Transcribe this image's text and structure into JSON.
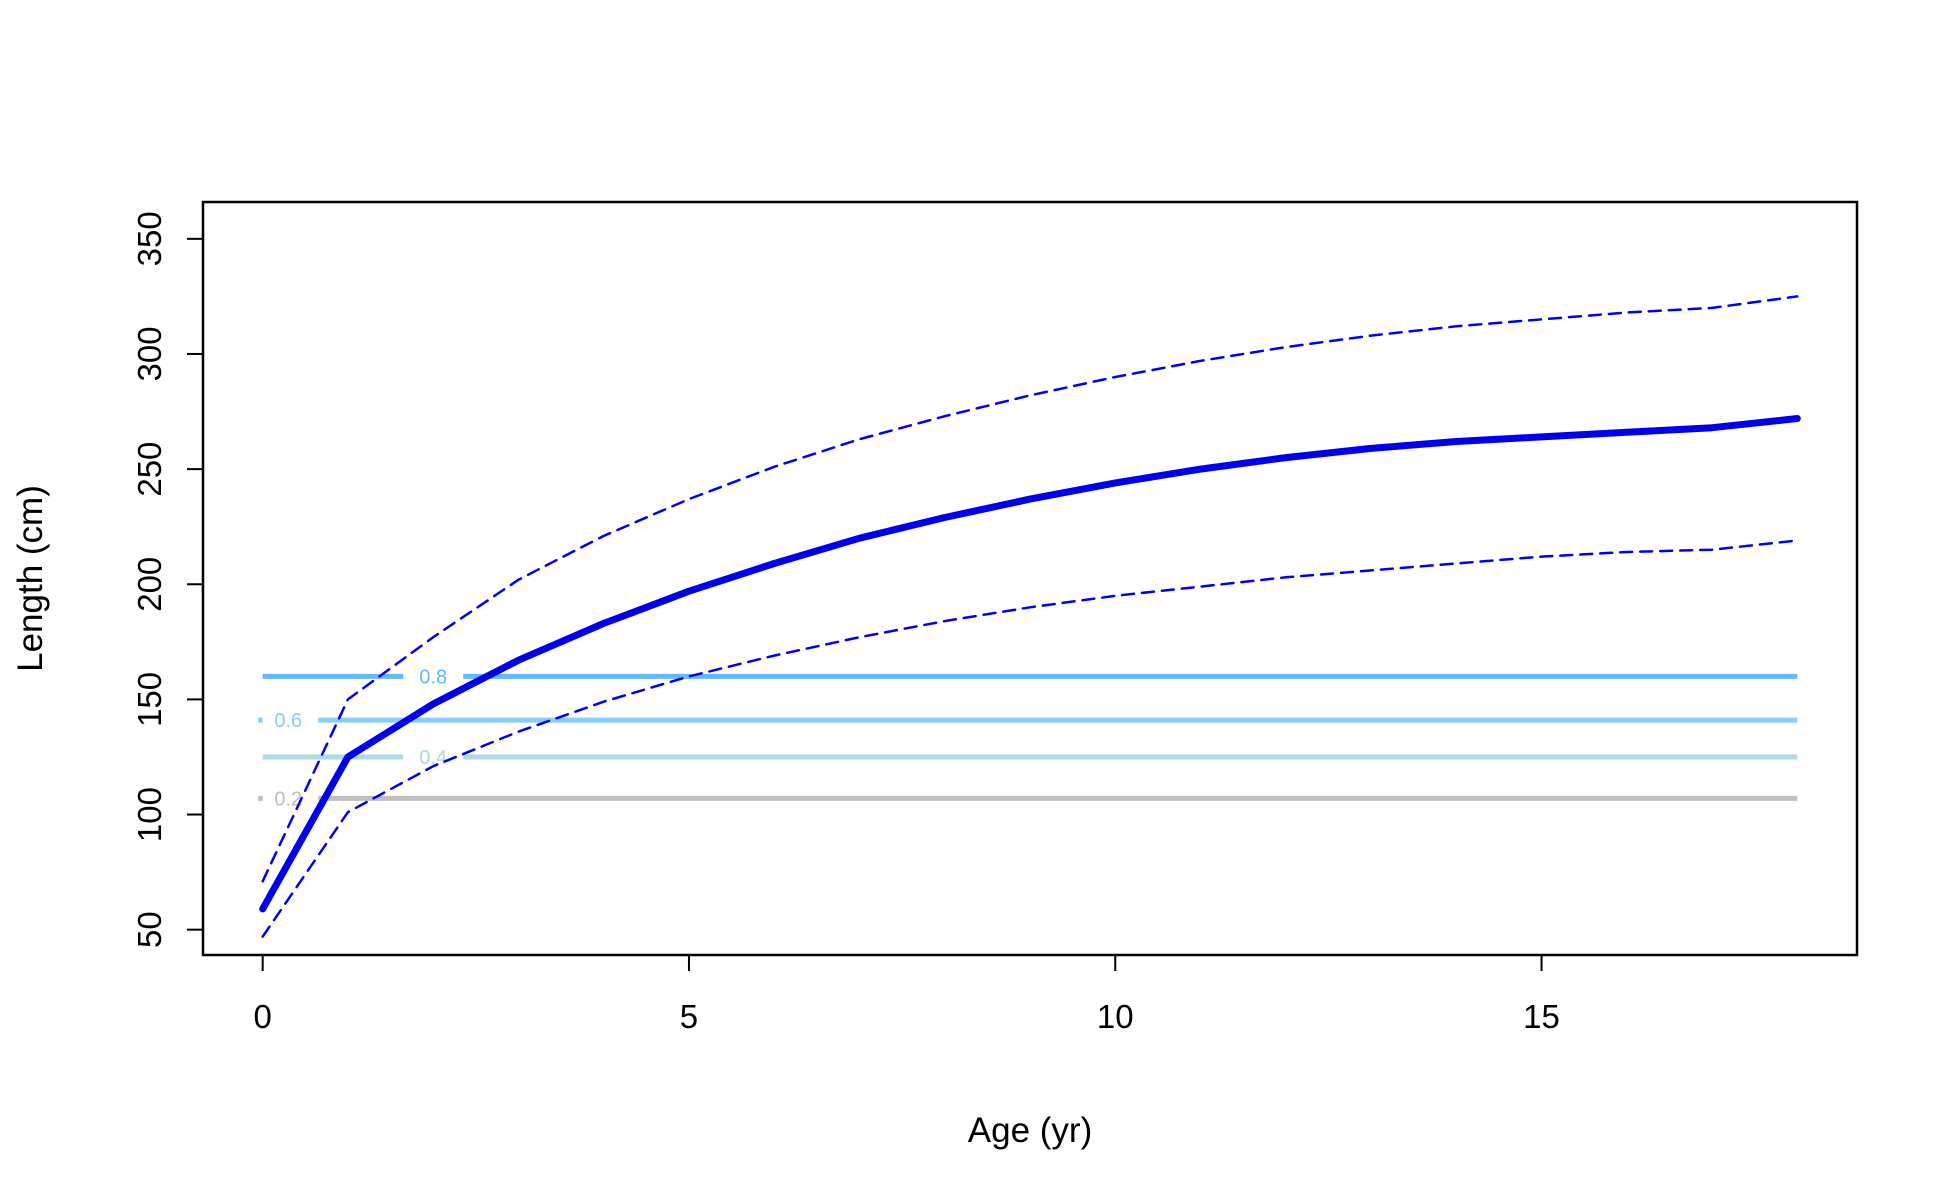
{
  "chart_data": {
    "type": "line",
    "title": "",
    "xlabel": "Age (yr)",
    "ylabel": "Length (cm)",
    "xlim": [
      -0.7,
      18.7
    ],
    "ylim": [
      39,
      366
    ],
    "xticks": [
      0,
      5,
      10,
      15
    ],
    "yticks": [
      50,
      100,
      150,
      200,
      250,
      300,
      350
    ],
    "grid": false,
    "legend": "none",
    "colors": {
      "main": "#0000ee",
      "interval": "#0000ee",
      "axis": "#000000"
    },
    "x": [
      0,
      1,
      2,
      3,
      4,
      5,
      6,
      7,
      8,
      9,
      10,
      11,
      12,
      13,
      14,
      15,
      16,
      17,
      18
    ],
    "series": [
      {
        "role": "mean",
        "values": [
          59,
          125,
          148,
          167,
          183,
          197,
          209,
          220,
          229,
          237,
          244,
          250,
          255,
          259,
          262,
          264,
          266,
          268,
          272
        ]
      },
      {
        "role": "upper",
        "values": [
          71,
          150,
          177,
          202,
          221,
          237,
          251,
          263,
          273,
          282,
          290,
          297,
          303,
          308,
          312,
          315,
          318,
          320,
          325
        ]
      },
      {
        "role": "lower",
        "values": [
          47,
          101,
          121,
          136,
          149,
          160,
          169,
          177,
          184,
          190,
          195,
          199,
          203,
          206,
          209,
          212,
          214,
          215,
          219
        ]
      }
    ],
    "contours": [
      {
        "label": "0.8",
        "y": 160,
        "color": "#63b8ff",
        "x_start": 0,
        "x_end": 18,
        "label_x": 2
      },
      {
        "label": "0.6",
        "y": 141,
        "color": "#87cefa",
        "x_start": 0,
        "x_end": 18,
        "label_x": 0.3
      },
      {
        "label": "0.4",
        "y": 125,
        "color": "#add8e6",
        "x_start": 0,
        "x_end": 18,
        "label_x": 2
      },
      {
        "label": "0.2",
        "y": 107,
        "color": "#bebebe",
        "x_start": 0,
        "x_end": 18,
        "label_x": 0.3
      }
    ]
  }
}
